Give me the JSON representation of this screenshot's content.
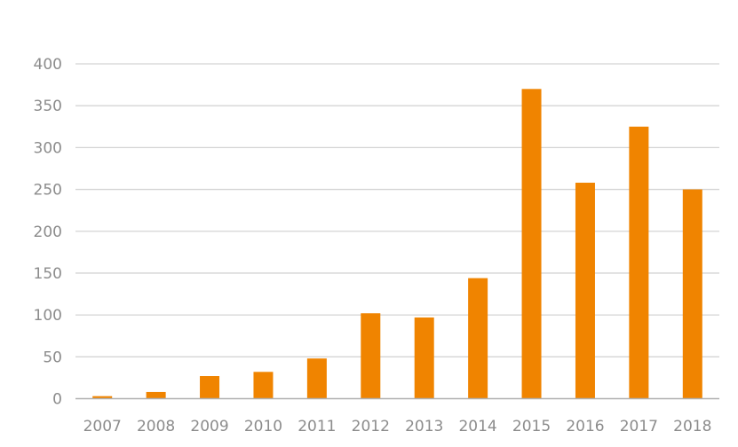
{
  "chart_data": {
    "type": "bar",
    "title": "",
    "xlabel": "",
    "ylabel": "",
    "categories": [
      "2007",
      "2008",
      "2009",
      "2010",
      "2011",
      "2012",
      "2013",
      "2014",
      "2015",
      "2016",
      "2017",
      "2018"
    ],
    "values": [
      3,
      8,
      27,
      32,
      48,
      102,
      97,
      144,
      370,
      258,
      325,
      250
    ],
    "ylim": [
      0,
      400
    ],
    "yticks": [
      0,
      50,
      100,
      150,
      200,
      250,
      300,
      350,
      400
    ],
    "grid": true,
    "legend": "none",
    "colors": {
      "bar": "#F08400",
      "grid": "#d4d4d4",
      "axis": "#b0b0b0",
      "label": "#8c8c8c"
    }
  }
}
